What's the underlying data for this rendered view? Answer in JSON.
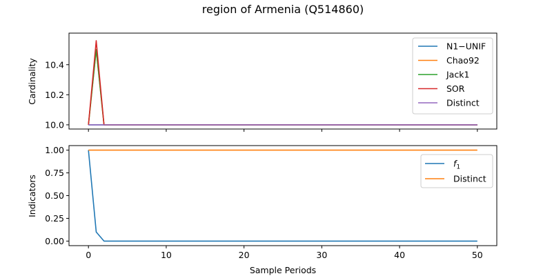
{
  "figure": {
    "title": "region of Armenia (Q514860)"
  },
  "chart_data": [
    {
      "type": "line",
      "ylabel": "Cardinality",
      "xlim": [
        -2.5,
        52.5
      ],
      "ylim": [
        9.972,
        10.61
      ],
      "yticks": [
        10.0,
        10.2,
        10.4
      ],
      "ytick_labels": [
        "10.0",
        "10.2",
        "10.4"
      ],
      "xticks": [
        0,
        10,
        20,
        30,
        40,
        50
      ],
      "legend_loc": "upper right",
      "series": [
        {
          "name": "N1−UNIF",
          "color": "#1f77b4",
          "x": [
            0,
            1,
            2,
            50
          ],
          "y": [
            10.0,
            10.0,
            10.0,
            10.0
          ]
        },
        {
          "name": "Chao92",
          "color": "#ff7f0e",
          "x": [
            0,
            1,
            2,
            50
          ],
          "y": [
            10.0,
            10.5,
            10.0,
            10.0
          ]
        },
        {
          "name": "Jack1",
          "color": "#2ca02c",
          "x": [
            0,
            1,
            2,
            50
          ],
          "y": [
            10.0,
            10.5,
            10.0,
            10.0
          ]
        },
        {
          "name": "SOR",
          "color": "#d62728",
          "x": [
            0,
            1,
            2,
            50
          ],
          "y": [
            10.0,
            10.56,
            10.0,
            10.0
          ]
        },
        {
          "name": "Distinct",
          "color": "#9467bd",
          "x": [
            0,
            1,
            2,
            50
          ],
          "y": [
            10.0,
            10.0,
            10.0,
            10.0
          ]
        }
      ]
    },
    {
      "type": "line",
      "ylabel": "Indicators",
      "xlabel": "Sample Periods",
      "xlim": [
        -2.5,
        52.5
      ],
      "ylim": [
        -0.05,
        1.05
      ],
      "yticks": [
        0.0,
        0.25,
        0.5,
        0.75,
        1.0
      ],
      "ytick_labels": [
        "0.00",
        "0.25",
        "0.50",
        "0.75",
        "1.00"
      ],
      "xticks": [
        0,
        10,
        20,
        30,
        40,
        50
      ],
      "xtick_labels": [
        "0",
        "10",
        "20",
        "30",
        "40",
        "50"
      ],
      "legend_loc": "upper right",
      "series": [
        {
          "name": "f1",
          "label_base": "f",
          "label_sub": "1",
          "color": "#1f77b4",
          "x": [
            0,
            1,
            2,
            50
          ],
          "y": [
            1.0,
            0.1,
            0.0,
            0.0
          ]
        },
        {
          "name": "Distinct",
          "color": "#ff7f0e",
          "x": [
            0,
            1,
            2,
            50
          ],
          "y": [
            1.0,
            1.0,
            1.0,
            1.0
          ]
        }
      ]
    }
  ]
}
